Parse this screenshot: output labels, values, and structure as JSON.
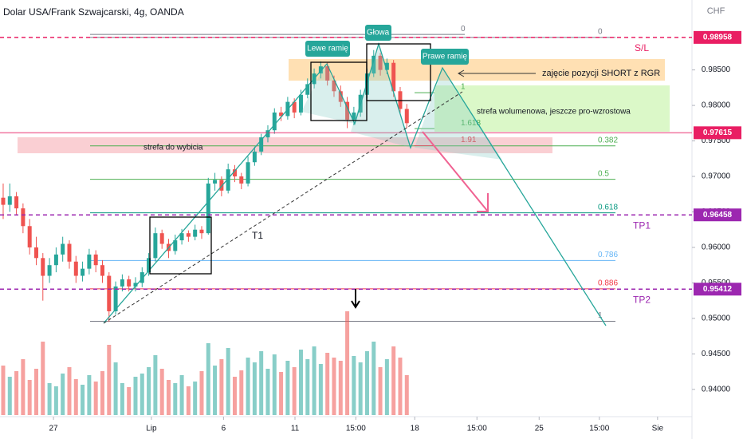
{
  "chart_data": {
    "type": "candlestick",
    "title": "Dolar USA/Frank Szwajcarski, 4g, OANDA",
    "y_label": "CHF",
    "up_color": "#26a69a",
    "down_color": "#ef5350",
    "candles": [
      [
        0.967,
        0.969,
        0.964,
        0.966
      ],
      [
        0.966,
        0.969,
        0.965,
        0.9672
      ],
      [
        0.9672,
        0.9678,
        0.9645,
        0.9655
      ],
      [
        0.9655,
        0.9662,
        0.962,
        0.963
      ],
      [
        0.963,
        0.964,
        0.959,
        0.96
      ],
      [
        0.96,
        0.9615,
        0.9575,
        0.9585
      ],
      [
        0.9585,
        0.9592,
        0.9525,
        0.956
      ],
      [
        0.956,
        0.9585,
        0.955,
        0.9575
      ],
      [
        0.9575,
        0.96,
        0.9565,
        0.959
      ],
      [
        0.959,
        0.9615,
        0.958,
        0.9605
      ],
      [
        0.9605,
        0.961,
        0.957,
        0.958
      ],
      [
        0.958,
        0.9588,
        0.955,
        0.956
      ],
      [
        0.956,
        0.958,
        0.9552,
        0.957
      ],
      [
        0.957,
        0.9598,
        0.9562,
        0.959
      ],
      [
        0.959,
        0.9596,
        0.9565,
        0.9575
      ],
      [
        0.9575,
        0.9582,
        0.955,
        0.956
      ],
      [
        0.956,
        0.9565,
        0.9495,
        0.951
      ],
      [
        0.951,
        0.9552,
        0.9505,
        0.9545
      ],
      [
        0.9545,
        0.9562,
        0.9538,
        0.9555
      ],
      [
        0.9555,
        0.956,
        0.9538,
        0.9545
      ],
      [
        0.9545,
        0.9558,
        0.9538,
        0.955
      ],
      [
        0.955,
        0.9572,
        0.9544,
        0.9565
      ],
      [
        0.9565,
        0.9592,
        0.956,
        0.9585
      ],
      [
        0.9585,
        0.9628,
        0.958,
        0.962
      ],
      [
        0.962,
        0.9625,
        0.9598,
        0.9605
      ],
      [
        0.9605,
        0.9612,
        0.9585,
        0.9595
      ],
      [
        0.9595,
        0.9618,
        0.959,
        0.961
      ],
      [
        0.961,
        0.9626,
        0.9604,
        0.962
      ],
      [
        0.962,
        0.9624,
        0.9608,
        0.9615
      ],
      [
        0.9615,
        0.9632,
        0.961,
        0.9625
      ],
      [
        0.9625,
        0.963,
        0.9612,
        0.962
      ],
      [
        0.962,
        0.9698,
        0.9618,
        0.969
      ],
      [
        0.969,
        0.9705,
        0.968,
        0.9695
      ],
      [
        0.9695,
        0.97,
        0.9672,
        0.968
      ],
      [
        0.968,
        0.9718,
        0.9676,
        0.971
      ],
      [
        0.971,
        0.9716,
        0.9692,
        0.97
      ],
      [
        0.97,
        0.9705,
        0.9682,
        0.969
      ],
      [
        0.969,
        0.9728,
        0.9686,
        0.972
      ],
      [
        0.972,
        0.9742,
        0.9715,
        0.9735
      ],
      [
        0.9735,
        0.976,
        0.973,
        0.9755
      ],
      [
        0.9755,
        0.9772,
        0.9748,
        0.9765
      ],
      [
        0.9765,
        0.9796,
        0.976,
        0.979
      ],
      [
        0.979,
        0.9798,
        0.9778,
        0.9785
      ],
      [
        0.9785,
        0.9812,
        0.978,
        0.9805
      ],
      [
        0.9805,
        0.981,
        0.9782,
        0.979
      ],
      [
        0.979,
        0.9822,
        0.9786,
        0.9815
      ],
      [
        0.9815,
        0.9838,
        0.981,
        0.983
      ],
      [
        0.983,
        0.9852,
        0.9824,
        0.9845
      ],
      [
        0.9845,
        0.9862,
        0.9838,
        0.9855
      ],
      [
        0.9855,
        0.986,
        0.9828,
        0.9835
      ],
      [
        0.9835,
        0.9842,
        0.9812,
        0.982
      ],
      [
        0.982,
        0.9828,
        0.9798,
        0.9805
      ],
      [
        0.9805,
        0.9812,
        0.9768,
        0.978
      ],
      [
        0.978,
        0.9798,
        0.9772,
        0.979
      ],
      [
        0.979,
        0.9822,
        0.9784,
        0.9815
      ],
      [
        0.9815,
        0.9852,
        0.981,
        0.9845
      ],
      [
        0.9845,
        0.9878,
        0.984,
        0.987
      ],
      [
        0.987,
        0.9874,
        0.9842,
        0.985
      ],
      [
        0.985,
        0.9866,
        0.9844,
        0.986
      ],
      [
        0.986,
        0.9864,
        0.9812,
        0.982
      ],
      [
        0.982,
        0.9826,
        0.9788,
        0.9795
      ],
      [
        0.9795,
        0.9802,
        0.9768,
        0.9775
      ]
    ],
    "volume": [
      62,
      48,
      55,
      70,
      44,
      58,
      92,
      40,
      36,
      52,
      60,
      45,
      38,
      50,
      42,
      55,
      88,
      66,
      40,
      35,
      48,
      52,
      60,
      75,
      58,
      44,
      40,
      50,
      36,
      42,
      55,
      90,
      62,
      70,
      84,
      48,
      56,
      72,
      66,
      80,
      58,
      76,
      54,
      68,
      60,
      82,
      70,
      86,
      64,
      78,
      72,
      68,
      130,
      74,
      66,
      80,
      92,
      60,
      70,
      86,
      72,
      50
    ],
    "xlim": [
      -0.48,
      104.1
    ],
    "ylim": [
      0.93616,
      0.99485
    ],
    "xticks": [
      {
        "value": 7.6,
        "label": "27"
      },
      {
        "value": 22.4,
        "label": "Lip"
      },
      {
        "value": 33.3,
        "label": "6"
      },
      {
        "value": 44.1,
        "label": "11"
      },
      {
        "value": 53.3,
        "label": "15:00"
      },
      {
        "value": 62.2,
        "label": "18"
      },
      {
        "value": 71.6,
        "label": "15:00"
      },
      {
        "value": 81,
        "label": "25"
      },
      {
        "value": 90.1,
        "label": "15:00"
      },
      {
        "value": 98.9,
        "label": "Sie"
      }
    ],
    "yticks": [
      {
        "value": 0.94,
        "label": "0.94000"
      },
      {
        "value": 0.945,
        "label": "0.94500"
      },
      {
        "value": 0.95,
        "label": "0.95000"
      },
      {
        "value": 0.955,
        "label": "0.95500"
      },
      {
        "value": 0.96,
        "label": "0.96000"
      },
      {
        "value": 0.965,
        "label": "0.96500"
      },
      {
        "value": 0.97,
        "label": "0.97000"
      },
      {
        "value": 0.975,
        "label": "0.97500"
      },
      {
        "value": 0.98,
        "label": "0.98000"
      },
      {
        "value": 0.985,
        "label": "0.98500"
      }
    ],
    "price_lines": [
      {
        "value": 0.98958,
        "color": "#e91e63",
        "name": "S/L"
      },
      {
        "value": 0.97615,
        "color": "#e91e63"
      },
      {
        "value": 0.96458,
        "color": "#9c27b0",
        "name": "TP1"
      },
      {
        "value": 0.95412,
        "color": "#9c27b0",
        "name": "TP2"
      }
    ],
    "fib": [
      {
        "top": 0.98958,
        "bottom": 0.9496,
        "levels": [
          0,
          0.382,
          0.5,
          0.618,
          0.786,
          0.886,
          1
        ],
        "colors": [
          "#787b86",
          "#4caf50",
          "#4caf50",
          "#089981",
          "#64b5f6",
          "#f23645",
          "#787b86"
        ]
      },
      {
        "top": 0.99,
        "bottom": 0.9818,
        "levels": [
          0,
          1,
          1.618,
          1.91
        ],
        "colors": [
          "#787b86",
          "#4caf50",
          "#4caf50",
          "#f23645"
        ]
      }
    ],
    "annotations": {
      "left_shoulder": "Lewe ramię",
      "head": "Głowa",
      "right_shoulder": "Prawe ramię",
      "entry": "zajęcie pozycji SHORT z RGR",
      "volume_zone": "strefa wolumenowa, jeszcze pro-wzrostowa",
      "breakout_zone": "strefa do wybicia",
      "target": "T1"
    }
  }
}
